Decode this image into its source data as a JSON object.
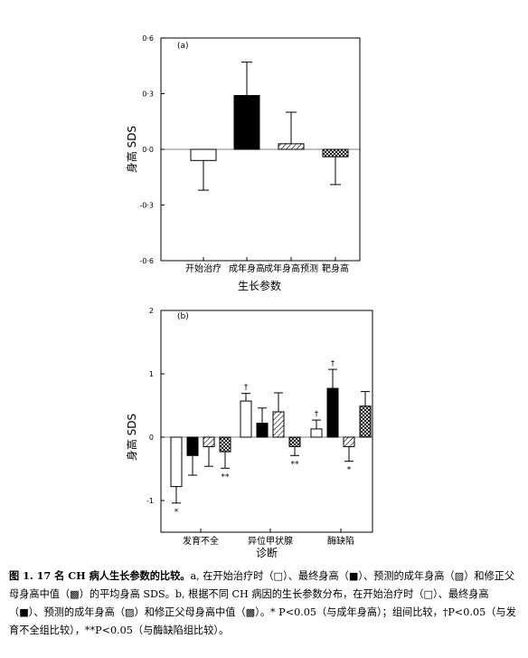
{
  "chart_data": [
    {
      "type": "bar",
      "panel_label": "(a)",
      "ylabel": "身高  SDS",
      "xlabel": "生长参数",
      "ylim": [
        -0.6,
        0.6
      ],
      "yticks": [
        0.6,
        0.3,
        0.0,
        -0.3,
        -0.6
      ],
      "ytick_labels": [
        "0·6",
        "0·3",
        "0·0",
        "-0·3",
        "-0·6"
      ],
      "categories": [
        "开始治疗",
        "成年身高",
        "成年身高预测",
        "靶身高"
      ],
      "fills": [
        "white",
        "black",
        "hatch",
        "crosshatch"
      ],
      "values": [
        -0.06,
        0.29,
        0.03,
        -0.04
      ],
      "errors": [
        0.16,
        0.18,
        0.17,
        0.15
      ],
      "grid": false,
      "legend": "none"
    },
    {
      "type": "bar",
      "panel_label": "(b)",
      "ylabel": "身高  SDS",
      "xlabel": "诊断",
      "ylim": [
        -1.5,
        2.0
      ],
      "yticks": [
        2,
        1,
        0,
        -1
      ],
      "ytick_labels": [
        "2",
        "1",
        "0",
        "-1"
      ],
      "categories": [
        "发育不全",
        "异位甲状腺",
        "酶缺陷"
      ],
      "fills": [
        "white",
        "black",
        "hatch",
        "crosshatch"
      ],
      "series": [
        {
          "values": [
            -0.78,
            0.57,
            0.13
          ],
          "errors": [
            0.26,
            0.12,
            0.14
          ],
          "annotations": [
            "*",
            "†",
            "†"
          ]
        },
        {
          "values": [
            -0.29,
            0.22,
            0.77
          ],
          "errors": [
            0.31,
            0.24,
            0.3
          ],
          "annotations": [
            "",
            "",
            "†"
          ]
        },
        {
          "values": [
            -0.15,
            0.4,
            -0.15
          ],
          "errors": [
            0.31,
            0.3,
            0.23
          ],
          "annotations": [
            "",
            "",
            "*"
          ]
        },
        {
          "values": [
            -0.23,
            -0.15,
            0.49
          ],
          "errors": [
            0.26,
            0.14,
            0.23
          ],
          "annotations": [
            "**",
            "**",
            ""
          ]
        }
      ],
      "grid": false,
      "legend": "none"
    }
  ],
  "caption": {
    "label": "图 1. 17 名 CH 病人生长参数的比较。",
    "text": "a, 在开始治疗时（□）、最终身高（■）、预测的成年身高（▨）和修正父母身高中值（▩）的平均身高 SDS。b, 根据不同 CH 病因的生长参数分布，在开始治疗时（□）、最终身高（■）、预测的成年身高（▨）和修正父母身高中值（▩）。* P<0.05（与成年身高）；组间比较，†P<0.05（与发育不全组比较），**P<0.05（与酶缺陷组比较）。"
  }
}
